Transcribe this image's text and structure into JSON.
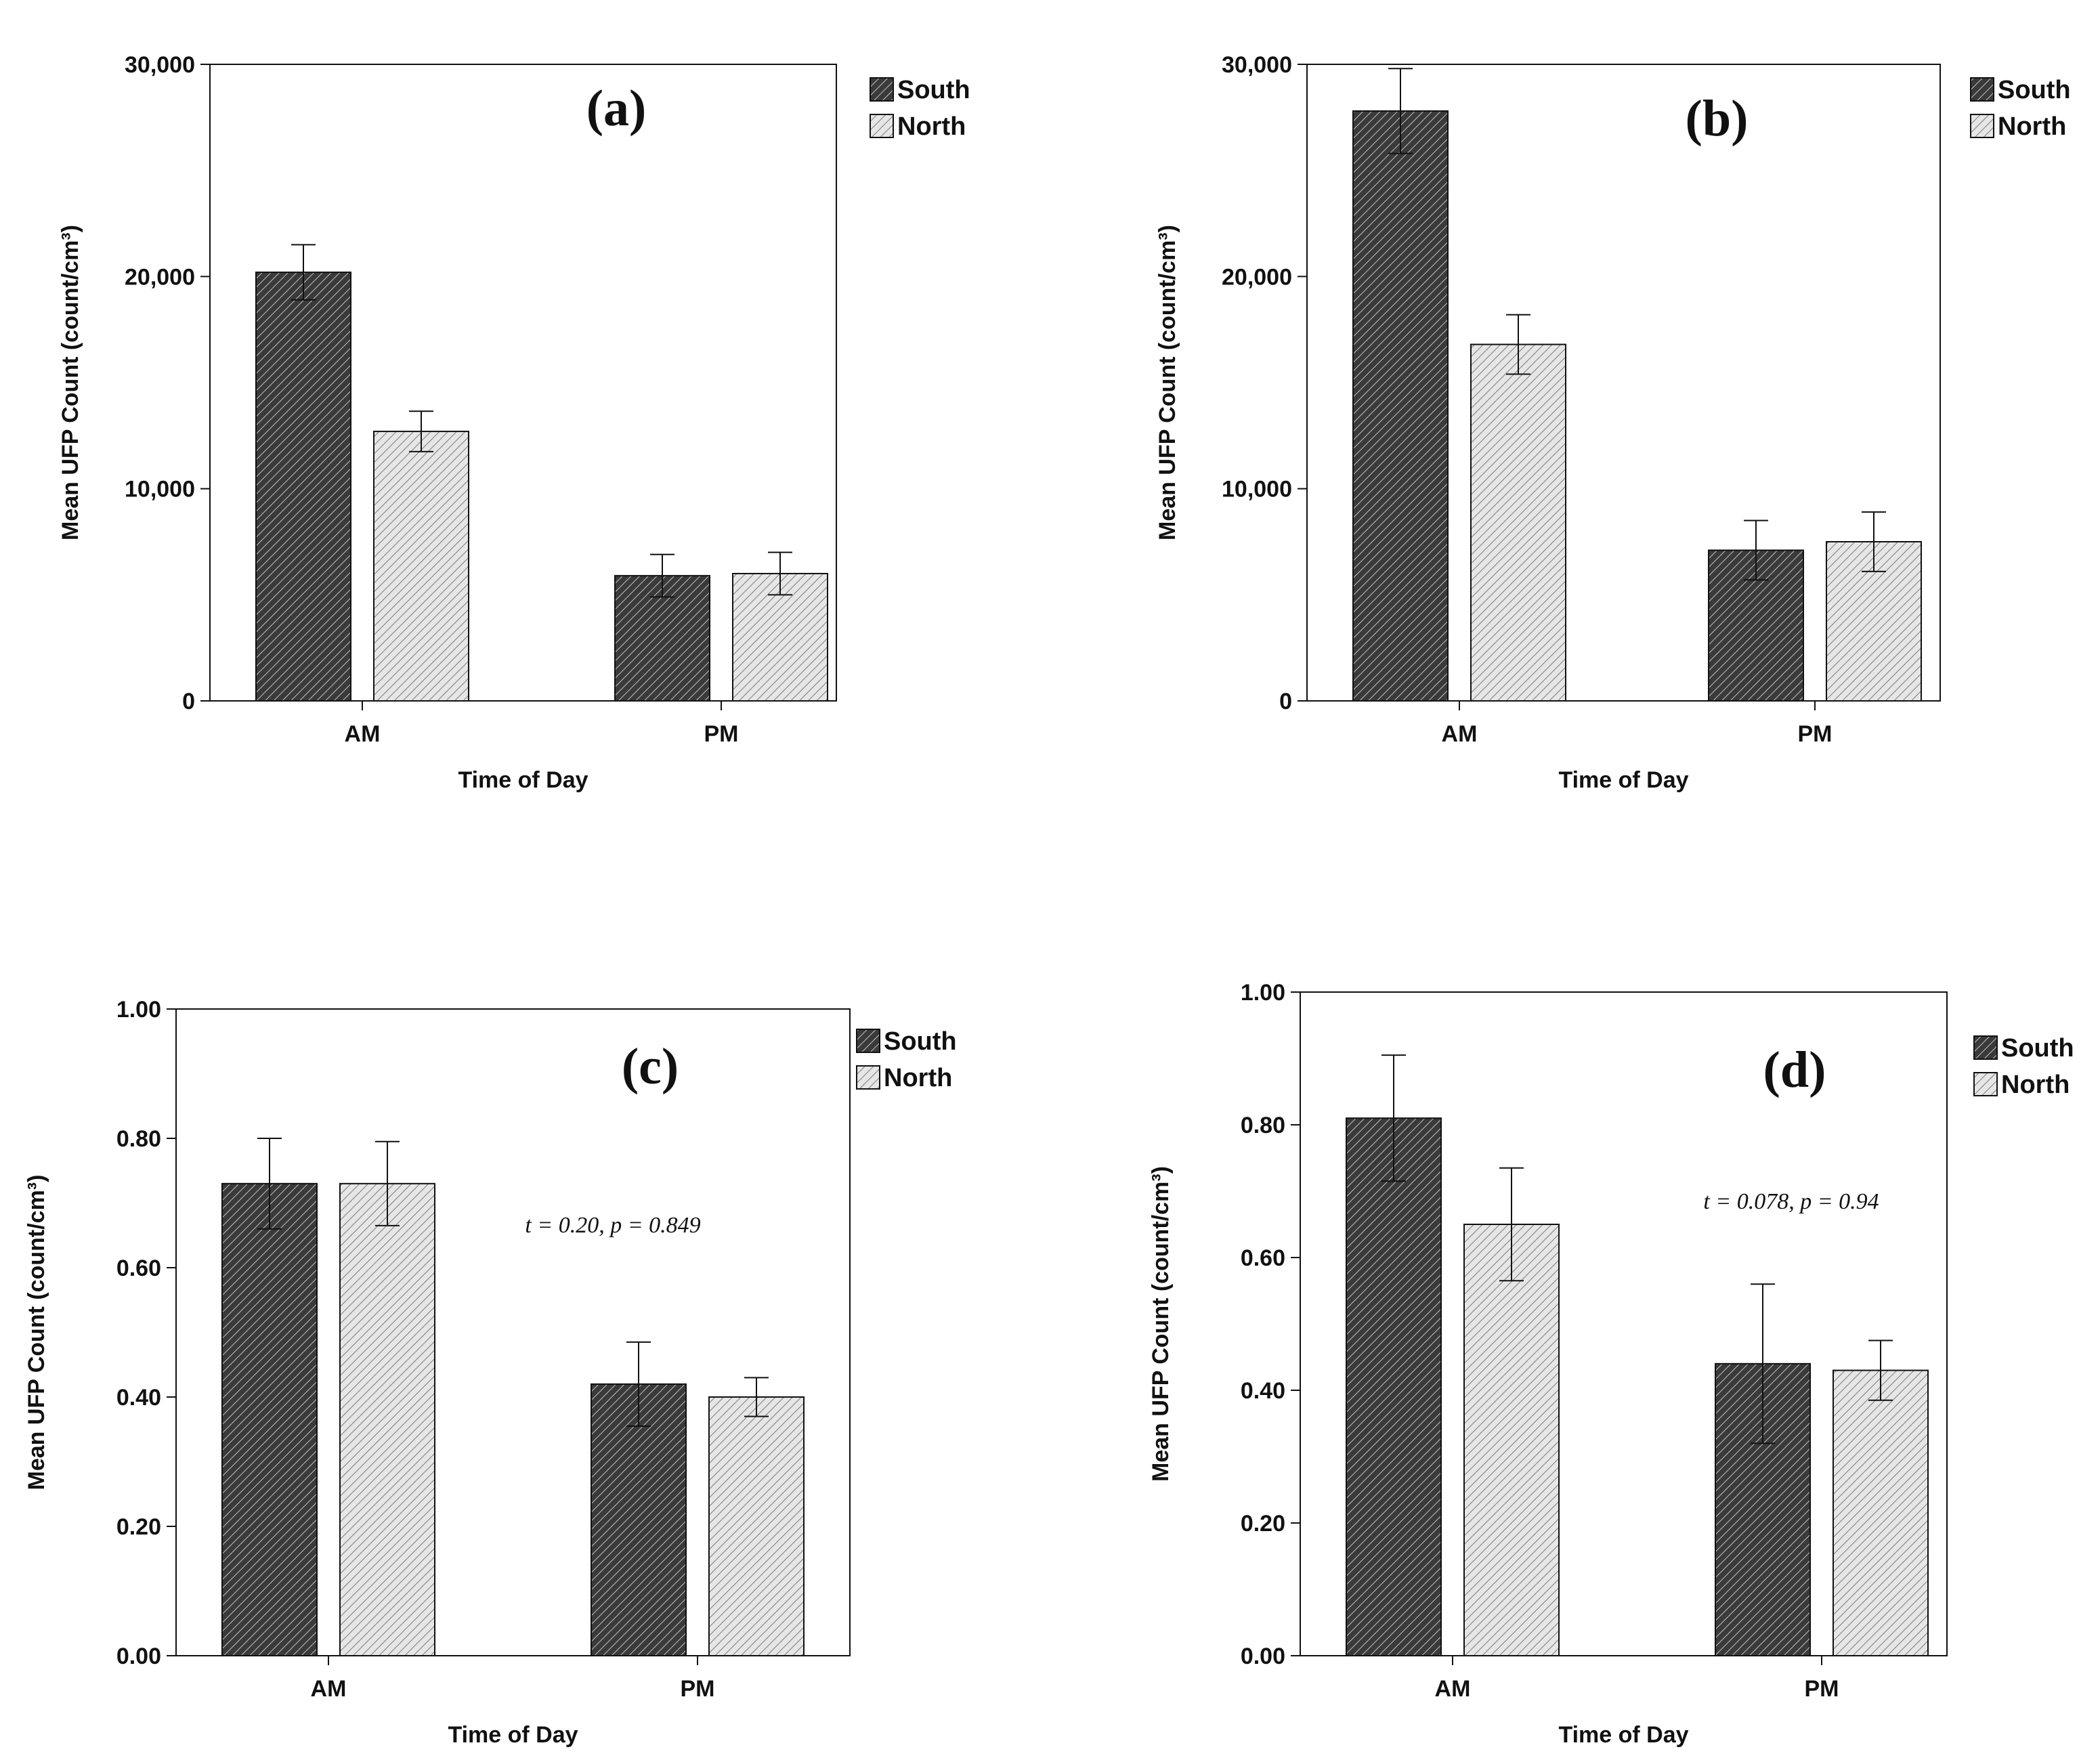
{
  "chart_data": [
    {
      "type": "bar",
      "panel": "(a)",
      "title": "(a)",
      "categories": [
        "AM",
        "PM"
      ],
      "series": [
        {
          "name": "South",
          "values": [
            20200,
            5900
          ],
          "errors": [
            1300,
            1000
          ]
        },
        {
          "name": "North",
          "values": [
            12700,
            6000
          ],
          "errors": [
            950,
            1000
          ]
        }
      ],
      "xlabel": "Time of Day",
      "ylabel": "Mean UFP Count (count/cm³)",
      "ylim": [
        0,
        30000
      ],
      "yticks": [
        0,
        10000,
        20000,
        30000
      ],
      "ytick_labels": [
        "0",
        "10,000",
        "20,000",
        "30,000"
      ],
      "legend": [
        "South",
        "North"
      ],
      "annotation": ""
    },
    {
      "type": "bar",
      "panel": "(b)",
      "title": "(b)",
      "categories": [
        "AM",
        "PM"
      ],
      "series": [
        {
          "name": "South",
          "values": [
            27800,
            7100
          ],
          "errors": [
            2000,
            1400
          ]
        },
        {
          "name": "North",
          "values": [
            16800,
            7500
          ],
          "errors": [
            1400,
            1400
          ]
        }
      ],
      "xlabel": "Time of Day",
      "ylabel": "Mean UFP Count (count/cm³)",
      "ylim": [
        0,
        30000
      ],
      "yticks": [
        0,
        10000,
        20000,
        30000
      ],
      "ytick_labels": [
        "0",
        "10,000",
        "20,000",
        "30,000"
      ],
      "legend": [
        "South",
        "North"
      ],
      "annotation": ""
    },
    {
      "type": "bar",
      "panel": "(c)",
      "title": "(c)",
      "categories": [
        "AM",
        "PM"
      ],
      "series": [
        {
          "name": "South",
          "values": [
            0.73,
            0.42
          ],
          "errors": [
            0.07,
            0.065
          ]
        },
        {
          "name": "North",
          "values": [
            0.73,
            0.4
          ],
          "errors": [
            0.065,
            0.03
          ]
        }
      ],
      "xlabel": "Time of Day",
      "ylabel": "Mean UFP Count (count/cm³)",
      "ylim": [
        0,
        1.0
      ],
      "yticks": [
        0,
        0.2,
        0.4,
        0.6,
        0.8,
        1.0
      ],
      "ytick_labels": [
        "0.00",
        "0.20",
        "0.40",
        "0.60",
        "0.80",
        "1.00"
      ],
      "legend": [
        "South",
        "North"
      ],
      "annotation": "t = 0.20, p = 0.849"
    },
    {
      "type": "bar",
      "panel": "(d)",
      "title": "(d)",
      "categories": [
        "AM",
        "PM"
      ],
      "series": [
        {
          "name": "South",
          "values": [
            0.81,
            0.44
          ],
          "errors": [
            0.095,
            0.12
          ]
        },
        {
          "name": "North",
          "values": [
            0.65,
            0.43
          ],
          "errors": [
            0.085,
            0.045
          ]
        }
      ],
      "xlabel": "Time of Day",
      "ylabel": "Mean UFP Count (count/cm³)",
      "ylim": [
        0,
        1.0
      ],
      "yticks": [
        0,
        0.2,
        0.4,
        0.6,
        0.8,
        1.0
      ],
      "ytick_labels": [
        "0.00",
        "0.20",
        "0.40",
        "0.60",
        "0.80",
        "1.00"
      ],
      "legend": [
        "South",
        "North"
      ],
      "annotation": "t = 0.078, p = 0.94"
    }
  ],
  "colors": {
    "south_fill": "#3a3a3a",
    "south_hatch": "#bdbdbd",
    "north_fill": "#e2e2e2",
    "north_hatch": "#777777",
    "axis": "#111111"
  }
}
